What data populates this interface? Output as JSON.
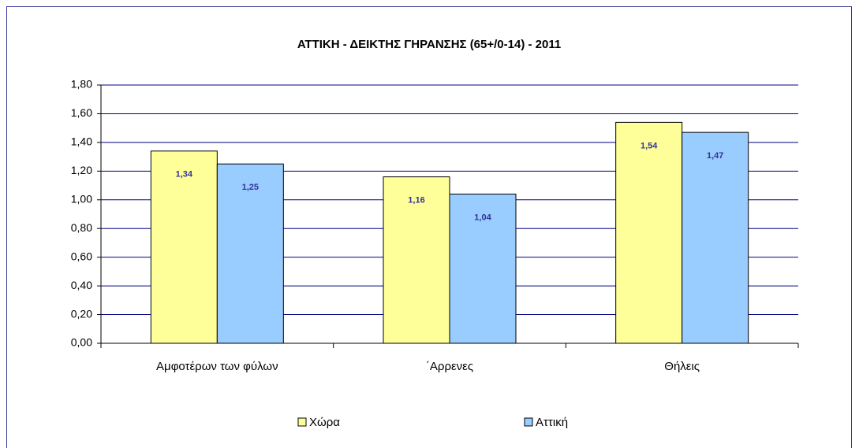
{
  "chart_data": {
    "type": "bar",
    "title": "ΑΤΤΙΚΗ - ΔΕΙΚΤΗΣ ΓΗΡΑΝΣΗΣ (65+/0-14) - 2011",
    "categories": [
      "Αμφοτέρων των φύλων",
      "΄Αρρενες",
      "Θήλεις"
    ],
    "series": [
      {
        "name": "Χώρα",
        "color": "#ffff99",
        "values": [
          1.34,
          1.16,
          1.54
        ],
        "value_labels": [
          "1,34",
          "1,16",
          "1,54"
        ]
      },
      {
        "name": "Αττική",
        "color": "#99ccff",
        "values": [
          1.25,
          1.04,
          1.47
        ],
        "value_labels": [
          "1,25",
          "1,04",
          "1,47"
        ]
      }
    ],
    "ylim": [
      0,
      1.8
    ],
    "yticks": [
      {
        "value": 0,
        "label": "0,00"
      },
      {
        "value": 0.2,
        "label": "0,20"
      },
      {
        "value": 0.4,
        "label": "0,40"
      },
      {
        "value": 0.6,
        "label": "0,60"
      },
      {
        "value": 0.8,
        "label": "0,80"
      },
      {
        "value": 1.0,
        "label": "1,00"
      },
      {
        "value": 1.2,
        "label": "1,20"
      },
      {
        "value": 1.4,
        "label": "1,40"
      },
      {
        "value": 1.6,
        "label": "1,60"
      },
      {
        "value": 1.8,
        "label": "1,80"
      }
    ],
    "grid": true,
    "grid_color": "#000080",
    "legend": "bottom"
  }
}
